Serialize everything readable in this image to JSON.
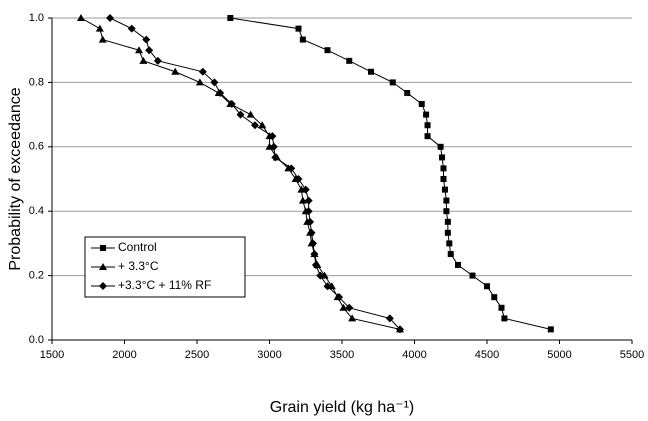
{
  "chart_data": {
    "type": "line",
    "x_label": "Grain yield (kg ha⁻¹)",
    "y_label": "Probability of exceedance",
    "xlim": [
      1500,
      5500
    ],
    "xticks": [
      1500,
      2000,
      2500,
      3000,
      3500,
      4000,
      4500,
      5000,
      5500
    ],
    "ylim": [
      0,
      1
    ],
    "yticks": [
      {
        "value": 0,
        "label": "0.0"
      },
      0.2,
      0.4,
      0.6,
      0.8,
      {
        "value": 1,
        "label": "1.0"
      }
    ],
    "grid": true,
    "legend": "lower-left",
    "series": [
      {
        "name": "Control",
        "color": "#000000",
        "marker": "square",
        "x": [
          2730,
          3200,
          3230,
          3400,
          3550,
          3700,
          3850,
          3950,
          4050,
          4080,
          4090,
          4090,
          4180,
          4190,
          4200,
          4200,
          4210,
          4220,
          4220,
          4230,
          4230,
          4240,
          4250,
          4300,
          4400,
          4500,
          4550,
          4600,
          4620,
          4940
        ],
        "values": [
          1.0,
          0.967,
          0.933,
          0.9,
          0.867,
          0.833,
          0.8,
          0.767,
          0.733,
          0.7,
          0.667,
          0.633,
          0.6,
          0.567,
          0.533,
          0.5,
          0.467,
          0.433,
          0.4,
          0.367,
          0.333,
          0.3,
          0.267,
          0.233,
          0.2,
          0.167,
          0.133,
          0.1,
          0.067,
          0.033
        ]
      },
      {
        "name": "+ 3.3°C",
        "color": "#000000",
        "marker": "triangle",
        "x": [
          1700,
          1830,
          1850,
          2100,
          2130,
          2350,
          2520,
          2650,
          2730,
          2870,
          2950,
          3000,
          3000,
          3050,
          3130,
          3180,
          3220,
          3230,
          3250,
          3260,
          3280,
          3290,
          3310,
          3330,
          3380,
          3430,
          3470,
          3510,
          3570,
          3900
        ],
        "values": [
          1.0,
          0.967,
          0.933,
          0.9,
          0.867,
          0.833,
          0.8,
          0.767,
          0.733,
          0.7,
          0.667,
          0.633,
          0.6,
          0.567,
          0.533,
          0.5,
          0.467,
          0.433,
          0.4,
          0.367,
          0.333,
          0.3,
          0.267,
          0.233,
          0.2,
          0.167,
          0.133,
          0.1,
          0.067,
          0.033
        ]
      },
      {
        "name": "+3.3°C + 11% RF",
        "color": "#000000",
        "marker": "diamond",
        "x": [
          1900,
          2050,
          2150,
          2170,
          2230,
          2540,
          2620,
          2660,
          2740,
          2800,
          2900,
          3020,
          3030,
          3040,
          3150,
          3200,
          3250,
          3270,
          3270,
          3280,
          3290,
          3300,
          3310,
          3320,
          3350,
          3400,
          3480,
          3550,
          3830,
          3900
        ],
        "values": [
          1.0,
          0.967,
          0.933,
          0.9,
          0.867,
          0.833,
          0.8,
          0.767,
          0.733,
          0.7,
          0.667,
          0.633,
          0.6,
          0.567,
          0.533,
          0.5,
          0.467,
          0.433,
          0.4,
          0.367,
          0.333,
          0.3,
          0.267,
          0.233,
          0.2,
          0.167,
          0.133,
          0.1,
          0.067,
          0.033
        ]
      }
    ]
  }
}
